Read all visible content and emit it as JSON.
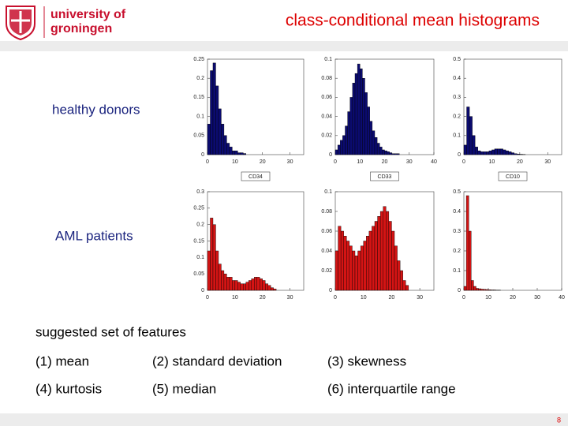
{
  "header": {
    "logo_line1": "university of",
    "logo_line2": "groningen",
    "title": "class-conditional mean histograms"
  },
  "row_labels": [
    "healthy donors",
    "AML patients"
  ],
  "features": {
    "heading": "suggested set of features",
    "items": [
      "(1) mean",
      "(2) standard deviation",
      "(3) skewness",
      "(4) kurtosis",
      "(5) median",
      "(6) interquartile range"
    ]
  },
  "page_number": "8",
  "chart_data": [
    {
      "type": "histogram",
      "color": "#0b0b70",
      "xlabel": "CD34",
      "xlim": [
        0,
        35
      ],
      "xticks": [
        0,
        10,
        20,
        30
      ],
      "ylim": [
        0,
        0.25
      ],
      "yticks": [
        0,
        0.05,
        0.1,
        0.15,
        0.2,
        0.25
      ],
      "bins": [
        0,
        1,
        2,
        3,
        4,
        5,
        6,
        7,
        8,
        9,
        10,
        11,
        12,
        13,
        14
      ],
      "values": [
        0.08,
        0.22,
        0.24,
        0.18,
        0.12,
        0.08,
        0.05,
        0.03,
        0.02,
        0.01,
        0.01,
        0.005,
        0.005,
        0.003
      ]
    },
    {
      "type": "histogram",
      "color": "#0b0b70",
      "xlabel": "CD33",
      "xlim": [
        0,
        40
      ],
      "xticks": [
        0,
        10,
        20,
        30,
        40
      ],
      "ylim": [
        0,
        0.1
      ],
      "yticks": [
        0,
        0.02,
        0.04,
        0.06,
        0.08,
        0.1
      ],
      "bins": [
        0,
        1,
        2,
        3,
        4,
        5,
        6,
        7,
        8,
        9,
        10,
        11,
        12,
        13,
        14,
        15,
        16,
        17,
        18,
        19,
        20,
        21,
        22,
        23,
        24,
        25,
        26
      ],
      "values": [
        0.005,
        0.01,
        0.015,
        0.02,
        0.03,
        0.045,
        0.06,
        0.075,
        0.085,
        0.095,
        0.09,
        0.08,
        0.065,
        0.05,
        0.035,
        0.025,
        0.018,
        0.012,
        0.008,
        0.005,
        0.004,
        0.003,
        0.002,
        0.001,
        0.001,
        0.001
      ]
    },
    {
      "type": "histogram",
      "color": "#0b0b70",
      "xlabel": "CD10",
      "xlim": [
        0,
        35
      ],
      "xticks": [
        0,
        10,
        20,
        30
      ],
      "ylim": [
        0,
        0.5
      ],
      "yticks": [
        0,
        0.1,
        0.2,
        0.3,
        0.4,
        0.5
      ],
      "bins": [
        0,
        1,
        2,
        3,
        4,
        5,
        6,
        7,
        8,
        9,
        10,
        11,
        12,
        13,
        14,
        15,
        16,
        17,
        18,
        19,
        20,
        21,
        22
      ],
      "values": [
        0.05,
        0.25,
        0.2,
        0.1,
        0.04,
        0.02,
        0.015,
        0.015,
        0.015,
        0.02,
        0.025,
        0.03,
        0.03,
        0.03,
        0.025,
        0.02,
        0.015,
        0.01,
        0.005,
        0.003,
        0.002,
        0.001
      ]
    },
    {
      "type": "histogram",
      "color": "#d41414",
      "xlim": [
        0,
        35
      ],
      "xticks": [
        0,
        10,
        20,
        30
      ],
      "ylim": [
        0,
        0.3
      ],
      "yticks": [
        0,
        0.05,
        0.1,
        0.15,
        0.2,
        0.25,
        0.3
      ],
      "bins": [
        0,
        1,
        2,
        3,
        4,
        5,
        6,
        7,
        8,
        9,
        10,
        11,
        12,
        13,
        14,
        15,
        16,
        17,
        18,
        19,
        20,
        21,
        22,
        23,
        24,
        25
      ],
      "values": [
        0.12,
        0.22,
        0.2,
        0.12,
        0.08,
        0.06,
        0.05,
        0.04,
        0.04,
        0.03,
        0.03,
        0.025,
        0.02,
        0.02,
        0.025,
        0.03,
        0.035,
        0.04,
        0.04,
        0.035,
        0.03,
        0.02,
        0.015,
        0.008,
        0.004
      ]
    },
    {
      "type": "histogram",
      "color": "#d41414",
      "xlim": [
        0,
        35
      ],
      "xticks": [
        0,
        10,
        20,
        30
      ],
      "ylim": [
        0,
        0.1
      ],
      "yticks": [
        0,
        0.02,
        0.04,
        0.06,
        0.08,
        0.1
      ],
      "bins": [
        0,
        1,
        2,
        3,
        4,
        5,
        6,
        7,
        8,
        9,
        10,
        11,
        12,
        13,
        14,
        15,
        16,
        17,
        18,
        19,
        20,
        21,
        22,
        23,
        24,
        25,
        26
      ],
      "values": [
        0.04,
        0.065,
        0.06,
        0.055,
        0.05,
        0.045,
        0.04,
        0.035,
        0.04,
        0.045,
        0.05,
        0.055,
        0.06,
        0.065,
        0.07,
        0.075,
        0.08,
        0.085,
        0.08,
        0.07,
        0.06,
        0.045,
        0.03,
        0.02,
        0.01,
        0.005
      ]
    },
    {
      "type": "histogram",
      "color": "#d41414",
      "xlim": [
        0,
        40
      ],
      "xticks": [
        0,
        10,
        20,
        30,
        40
      ],
      "ylim": [
        0,
        0.5
      ],
      "yticks": [
        0,
        0.1,
        0.2,
        0.3,
        0.4,
        0.5
      ],
      "bins": [
        0,
        1,
        2,
        3,
        4,
        5,
        6,
        7,
        8,
        9,
        10,
        11,
        12,
        13,
        14,
        15
      ],
      "values": [
        0.02,
        0.48,
        0.3,
        0.05,
        0.02,
        0.01,
        0.008,
        0.006,
        0.005,
        0.004,
        0.003,
        0.002,
        0.002,
        0.001,
        0.001
      ]
    }
  ]
}
